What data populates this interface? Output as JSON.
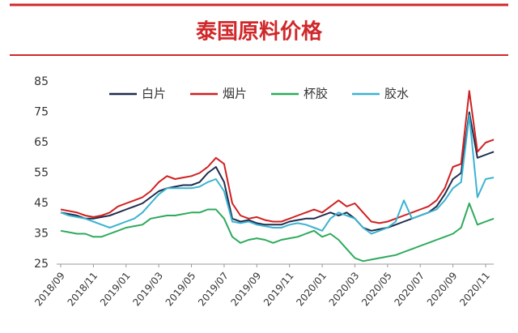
{
  "chart_data": {
    "type": "line",
    "title": "泰国原料价格",
    "categories": [
      "2018/09",
      null,
      null,
      null,
      "2018/11",
      null,
      null,
      null,
      "2019/01",
      null,
      null,
      null,
      "2019/03",
      null,
      null,
      null,
      "2019/05",
      null,
      null,
      null,
      "2019/07",
      null,
      null,
      null,
      "2019/09",
      null,
      null,
      null,
      "2019/11",
      null,
      null,
      null,
      "2020/01",
      null,
      null,
      null,
      "2020/03",
      null,
      null,
      null,
      "2020/05",
      null,
      null,
      null,
      "2020/07",
      null,
      null,
      null,
      "2020/09",
      null,
      null,
      null,
      "2020/11",
      null
    ],
    "series": [
      {
        "name": "白片",
        "color": "#1f2d4d",
        "values": [
          42,
          41.5,
          41,
          40,
          40,
          40.5,
          41,
          42,
          43,
          44,
          45,
          47,
          49,
          50,
          50.5,
          51,
          51,
          52,
          55,
          57,
          52,
          40,
          39,
          39.5,
          38.5,
          38,
          38,
          38,
          39,
          39.5,
          40,
          40,
          41,
          42,
          41,
          42,
          40,
          37,
          36,
          36.5,
          37,
          38,
          39,
          40,
          41,
          42,
          44,
          48,
          53,
          55,
          75,
          60,
          61,
          62
        ]
      },
      {
        "name": "烟片",
        "color": "#d02020",
        "values": [
          43,
          42.5,
          42,
          41,
          40.5,
          41,
          42,
          44,
          45,
          46,
          47,
          49,
          52,
          54,
          53,
          53.5,
          54,
          55,
          57,
          60,
          58,
          45,
          41,
          40,
          40.5,
          39.5,
          39,
          39,
          40,
          41,
          42,
          43,
          42,
          44,
          46,
          44,
          45,
          42,
          39,
          38.5,
          39,
          40,
          41,
          42,
          43,
          44,
          46,
          50,
          57,
          58,
          82,
          62,
          65,
          66
        ]
      },
      {
        "name": "杯胶",
        "color": "#2eaa5c",
        "values": [
          36,
          35.5,
          35,
          35,
          34,
          34,
          35,
          36,
          37,
          37.5,
          38,
          40,
          40.5,
          41,
          41,
          41.5,
          42,
          42,
          43,
          43,
          40,
          34,
          32,
          33,
          33.5,
          33,
          32,
          33,
          33.5,
          34,
          35,
          36,
          34,
          35,
          33,
          30,
          27,
          26,
          26.5,
          27,
          27.5,
          28,
          29,
          30,
          31,
          32,
          33,
          34,
          35,
          37,
          45,
          38,
          39,
          40
        ]
      },
      {
        "name": "胶水",
        "color": "#3bb3d0",
        "values": [
          42,
          41,
          40.5,
          40,
          39,
          38,
          37,
          38,
          39,
          40,
          42,
          45,
          48,
          50,
          50,
          50,
          50,
          50.5,
          52,
          53,
          49,
          39,
          38.5,
          39,
          38,
          37.5,
          37,
          37,
          38,
          38.5,
          38,
          37,
          36,
          40,
          42,
          41,
          40,
          37,
          35,
          36,
          37,
          39,
          46,
          40,
          41,
          42,
          43,
          46,
          50,
          52,
          74,
          47,
          53,
          53.5
        ]
      }
    ],
    "ylim": [
      25,
      85
    ],
    "yticks": [
      25,
      35,
      45,
      55,
      65,
      75,
      85
    ],
    "grid": false,
    "legend": "top"
  }
}
